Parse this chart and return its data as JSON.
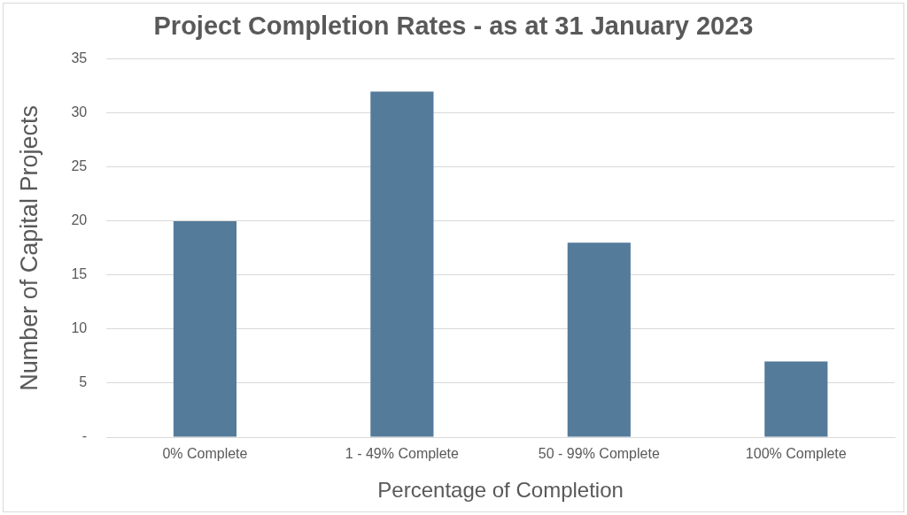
{
  "chart_data": {
    "type": "bar",
    "title": "Project Completion Rates - as at 31 January 2023",
    "xlabel": "Percentage of Completion",
    "ylabel": "Number of Capital Projects",
    "categories": [
      "0% Complete",
      "1 - 49% Complete",
      "50 - 99% Complete",
      "100% Complete"
    ],
    "values": [
      20,
      32,
      18,
      7
    ],
    "color": "#557b9b",
    "ylim": [
      0,
      35
    ],
    "yticks": [
      {
        "value": 0,
        "label": "-"
      },
      5,
      10,
      15,
      20,
      25,
      30,
      35
    ],
    "grid": "y",
    "legend": false
  }
}
